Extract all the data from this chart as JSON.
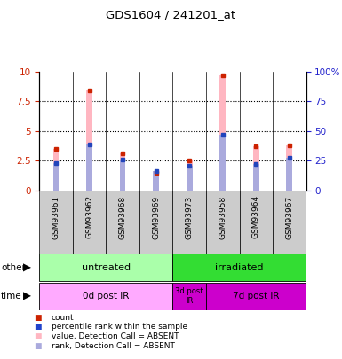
{
  "title": "GDS1604 / 241201_at",
  "samples": [
    "GSM93961",
    "GSM93962",
    "GSM93968",
    "GSM93969",
    "GSM93973",
    "GSM93958",
    "GSM93964",
    "GSM93967"
  ],
  "pink_bars": [
    3.5,
    8.4,
    3.15,
    1.5,
    2.5,
    9.7,
    3.7,
    3.8
  ],
  "blue_bars": [
    2.3,
    3.85,
    2.6,
    1.65,
    2.1,
    4.7,
    2.2,
    2.75
  ],
  "ylim": [
    0,
    10
  ],
  "yticks": [
    0,
    2.5,
    5,
    7.5,
    10
  ],
  "ytick_labels_left": [
    "0",
    "2.5",
    "5",
    "7.5",
    "10"
  ],
  "ytick_labels_right": [
    "0",
    "25",
    "50",
    "75",
    "100%"
  ],
  "groups_other": [
    {
      "label": "untreated",
      "start": 0,
      "end": 4,
      "color": "#AAFFAA"
    },
    {
      "label": "irradiated",
      "start": 4,
      "end": 8,
      "color": "#33DD33"
    }
  ],
  "groups_time": [
    {
      "label": "0d post IR",
      "start": 0,
      "end": 4,
      "color": "#FFAAFF"
    },
    {
      "label": "3d post\nIR",
      "start": 4,
      "end": 5,
      "color": "#CC00CC"
    },
    {
      "label": "7d post IR",
      "start": 5,
      "end": 8,
      "color": "#CC00CC"
    }
  ],
  "other_label": "other",
  "time_label": "time",
  "legend": [
    {
      "color": "#CC2200",
      "label": "count"
    },
    {
      "color": "#2244CC",
      "label": "percentile rank within the sample"
    },
    {
      "color": "#FFB6C1",
      "label": "value, Detection Call = ABSENT"
    },
    {
      "color": "#AAAADD",
      "label": "rank, Detection Call = ABSENT"
    }
  ],
  "bar_width": 0.18,
  "pink_color": "#FFB6C1",
  "blue_color": "#AAAADD",
  "red_sq_color": "#CC2200",
  "blue_sq_color": "#2244BB",
  "left_axis_color": "#CC2200",
  "right_axis_color": "#2222CC",
  "bg_color": "#FFFFFF",
  "plot_bg": "#FFFFFF",
  "sample_bg": "#CCCCCC"
}
